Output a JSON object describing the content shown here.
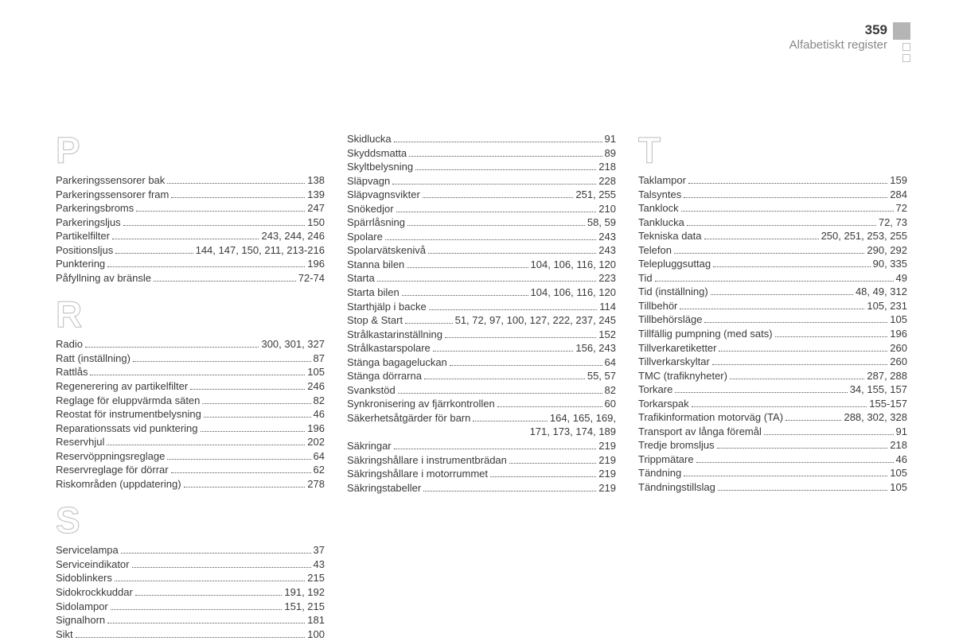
{
  "header": {
    "page_number": "359",
    "title": "Alfabetiskt register"
  },
  "colors": {
    "text": "#3a3a3a",
    "letter_stroke": "#bdbdbd",
    "header_subtitle": "#888888",
    "square_fill": "#b5b5b5",
    "background": "#ffffff"
  },
  "typography": {
    "body_fontsize": 13,
    "letter_fontsize": 46,
    "page_number_fontsize": 17,
    "title_fontsize": 15,
    "font_family": "Arial"
  },
  "columns": [
    {
      "blocks": [
        {
          "letter": "P",
          "entries": [
            {
              "term": "Parkeringssensorer bak",
              "pages": "138"
            },
            {
              "term": "Parkeringssensorer fram",
              "pages": "139"
            },
            {
              "term": "Parkeringsbroms",
              "pages": "247"
            },
            {
              "term": "Parkeringsljus",
              "pages": "150"
            },
            {
              "term": "Partikelfilter",
              "pages": "243, 244, 246"
            },
            {
              "term": "Positionsljus",
              "pages": "144, 147, 150, 211, 213-216"
            },
            {
              "term": "Punktering",
              "pages": "196"
            },
            {
              "term": "Påfyllning av bränsle",
              "pages": "72-74"
            }
          ]
        },
        {
          "letter": "R",
          "entries": [
            {
              "term": "Radio",
              "pages": "300, 301, 327"
            },
            {
              "term": "Ratt (inställning)",
              "pages": "87"
            },
            {
              "term": "Rattlås",
              "pages": "105"
            },
            {
              "term": "Regenerering av partikelfilter",
              "pages": "246"
            },
            {
              "term": "Reglage för eluppvärmda säten",
              "pages": "82"
            },
            {
              "term": "Reostat för instrumentbelysning",
              "pages": "46"
            },
            {
              "term": "Reparationssats vid punktering",
              "pages": "196"
            },
            {
              "term": "Reservhjul",
              "pages": "202"
            },
            {
              "term": "Reservöppningsreglage",
              "pages": "64"
            },
            {
              "term": "Reservreglage för dörrar",
              "pages": "62"
            },
            {
              "term": "Riskområden (uppdatering)",
              "pages": "278"
            }
          ]
        },
        {
          "letter": "S",
          "entries": [
            {
              "term": "Servicelampa",
              "pages": "37"
            },
            {
              "term": "Serviceindikator",
              "pages": "43"
            },
            {
              "term": "Sidoblinkers",
              "pages": "215"
            },
            {
              "term": "Sidokrockkuddar",
              "pages": "191, 192"
            },
            {
              "term": "Sidolampor",
              "pages": "151, 215"
            },
            {
              "term": "Signalhorn",
              "pages": "181"
            },
            {
              "term": "Sikt",
              "pages": "100"
            }
          ]
        }
      ]
    },
    {
      "blocks": [
        {
          "letter": "",
          "entries": [
            {
              "term": "Skidlucka",
              "pages": "91"
            },
            {
              "term": "Skyddsmatta",
              "pages": "89"
            },
            {
              "term": "Skyltbelysning",
              "pages": "218"
            },
            {
              "term": "Släpvagn",
              "pages": "228"
            },
            {
              "term": "Släpvagnsvikter",
              "pages": "251, 255"
            },
            {
              "term": "Snökedjor",
              "pages": "210"
            },
            {
              "term": "Spärrlåsning",
              "pages": "58, 59"
            },
            {
              "term": "Spolare",
              "pages": "243"
            },
            {
              "term": "Spolarvätskenivå",
              "pages": "243"
            },
            {
              "term": "Stanna bilen",
              "pages": "104, 106, 116, 120"
            },
            {
              "term": "Starta",
              "pages": "223"
            },
            {
              "term": "Starta bilen",
              "pages": "104, 106, 116, 120"
            },
            {
              "term": "Starthjälp i backe",
              "pages": "114"
            },
            {
              "term": "Stop & Start",
              "pages": "51, 72, 97, 100, 127, 222, 237, 245"
            },
            {
              "term": "Strålkastarinställning",
              "pages": "152"
            },
            {
              "term": "Strålkastarspolare",
              "pages": "156, 243"
            },
            {
              "term": "Stänga bagageluckan",
              "pages": "64"
            },
            {
              "term": "Stänga dörrarna",
              "pages": "55, 57"
            },
            {
              "term": "Svankstöd",
              "pages": "82"
            },
            {
              "term": "Synkronisering av fjärrkontrollen",
              "pages": "60"
            },
            {
              "term": "Säkerhetsåtgärder för barn",
              "pages": "164, 165, 169,"
            },
            {
              "term": "",
              "pages": "171, 173, 174, 189",
              "cont": true
            },
            {
              "term": "Säkringar",
              "pages": "219"
            },
            {
              "term": "Säkringshållare i instrumentbrädan",
              "pages": "219"
            },
            {
              "term": "Säkringshållare i motorrummet",
              "pages": "219"
            },
            {
              "term": "Säkringstabeller",
              "pages": "219"
            }
          ]
        }
      ]
    },
    {
      "blocks": [
        {
          "letter": "T",
          "entries": [
            {
              "term": "Taklampor",
              "pages": "159"
            },
            {
              "term": "Talsyntes",
              "pages": "284"
            },
            {
              "term": "Tanklock",
              "pages": "72"
            },
            {
              "term": "Tanklucka",
              "pages": "72, 73"
            },
            {
              "term": "Tekniska data",
              "pages": "250, 251, 253, 255"
            },
            {
              "term": "Telefon",
              "pages": "290, 292"
            },
            {
              "term": "Telepluggsuttag",
              "pages": "90, 335"
            },
            {
              "term": "Tid",
              "pages": "49"
            },
            {
              "term": "Tid (inställning)",
              "pages": "48, 49, 312"
            },
            {
              "term": "Tillbehör",
              "pages": "105, 231"
            },
            {
              "term": "Tillbehörsläge",
              "pages": "105"
            },
            {
              "term": "Tillfällig pumpning (med sats)",
              "pages": "196"
            },
            {
              "term": "Tillverkaretiketter",
              "pages": "260"
            },
            {
              "term": "Tillverkarskyltar",
              "pages": "260"
            },
            {
              "term": "TMC (trafiknyheter)",
              "pages": "287, 288"
            },
            {
              "term": "Torkare",
              "pages": "34, 155, 157"
            },
            {
              "term": "Torkarspak",
              "pages": "155-157"
            },
            {
              "term": "Trafikinformation motorväg (TA)",
              "pages": "288, 302, 328"
            },
            {
              "term": "Transport av långa föremål",
              "pages": "91"
            },
            {
              "term": "Tredje bromsljus",
              "pages": "218"
            },
            {
              "term": "Trippmätare",
              "pages": "46"
            },
            {
              "term": "Tändning",
              "pages": "105"
            },
            {
              "term": "Tändningstillslag",
              "pages": "105"
            }
          ]
        }
      ]
    }
  ]
}
